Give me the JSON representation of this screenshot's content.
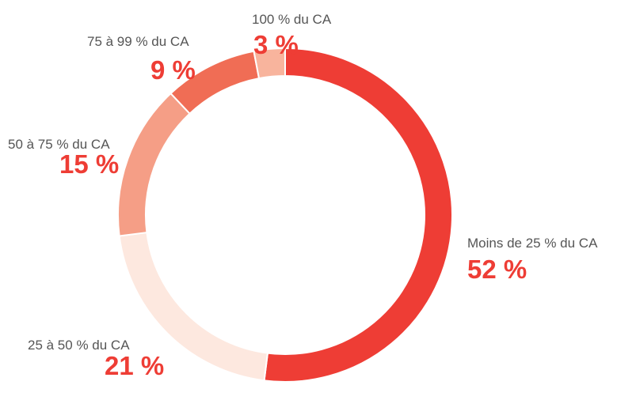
{
  "chart_data": {
    "type": "donut",
    "categories": [
      "Moins de 25 % du CA",
      "25 à 50 % du CA",
      "50 à 75 % du CA",
      "75 à 99 % du CA",
      "100  % du CA"
    ],
    "values": [
      52,
      21,
      15,
      9,
      3
    ],
    "value_labels": [
      "52 %",
      "21 %",
      "15 %",
      "9 %",
      "3 %"
    ],
    "colors": [
      "#ee3d35",
      "#fde8df",
      "#f59e86",
      "#f06d55",
      "#f8b49d"
    ]
  }
}
